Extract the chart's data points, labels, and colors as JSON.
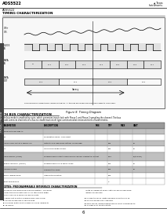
{
  "page_header": "ADS5522",
  "logo_text": "TEXAS\nINSTRUMENTS",
  "section1_label": "TIMING CHARACTERIZATION",
  "figure_label": "Figure 8. Timing Diagram",
  "section2_label": "T/H BUS CHARACTERIZATION",
  "section2_desc1": "The bus mode is enabled by a pin, which generates input clock with Phase 1 and Phase 2 sampling the channel. The bus",
  "section2_desc2": "mode connects channels on a bus to create transceiver type communication measurements characteristics.",
  "table_headers": [
    "PARAMETER",
    "DESCRIPTION",
    "MIN",
    "TYP",
    "MAX",
    "UNIT"
  ],
  "rows_data": [
    [
      "PROPAGATION DELAY",
      "",
      "",
      "",
      "",
      ""
    ],
    [
      "tPD",
      "Propagation delay, clock input",
      "",
      "",
      "",
      ""
    ],
    [
      "SWITCHING CHARACTERISTICS",
      "Output clock high level setting, falling edge",
      "",
      "400",
      "",
      "ps"
    ],
    [
      "tCH",
      "Clock pulse width at 50%",
      "",
      "400",
      "",
      "ps"
    ],
    [
      "SKEW ENTRY (LVDS)",
      "Programmable output sampling per channel differential output",
      "",
      "82.6",
      "",
      "ps(typical)"
    ],
    [
      "tSKEW common (CMOS)",
      "Programmable clock skew values",
      "",
      "200",
      "",
      "ps"
    ],
    [
      "TIMING JITTER",
      "Timing jitter value",
      "",
      "200",
      "",
      "ps"
    ],
    [
      "INPUT IMPEDANCE",
      "Internal termination.",
      "",
      "200",
      "",
      ""
    ],
    [
      "Input impedance",
      "",
      "",
      "4",
      "",
      ""
    ]
  ],
  "row_colors": [
    "#c0c0c0",
    "#ffffff",
    "#c0c0c0",
    "#ffffff",
    "#c0c0c0",
    "#ffffff",
    "#c0c0c0",
    "#ffffff",
    "#ffffff"
  ],
  "notes_header": "NOTES: PROGRAMMABLE INTERFACE CHARACTERIZATION",
  "notes_line1": "The device has advanced synchronization. The device    Data is loaded at every 18th SCLKin falling edge",
  "notes_line2": "follows the serial data SDATA on the falling edge of   within SCLKin bus.",
  "notes_line3": "serial clock SCLK when SCLKin reflects.",
  "notes_bullets_left": [
    "Serial shift of bits is enabled when SDQ is low.",
    "SCLKin establishes at falling edge.",
    "Minimum width of bits shown is a valid leading to",
    "18 clocks."
  ],
  "notes_bullets_right": [
    "In case the word length exceeds a multiple of 18",
    "bits the excess bits is ignored.",
    "Data can be loaded based/triple of 18-bit boundaries to",
    "a single 6-bit 18-bit pattern."
  ],
  "bg_color": "#ffffff",
  "text_color": "#000000",
  "page_number": "6",
  "left_bar_color": "#555555"
}
